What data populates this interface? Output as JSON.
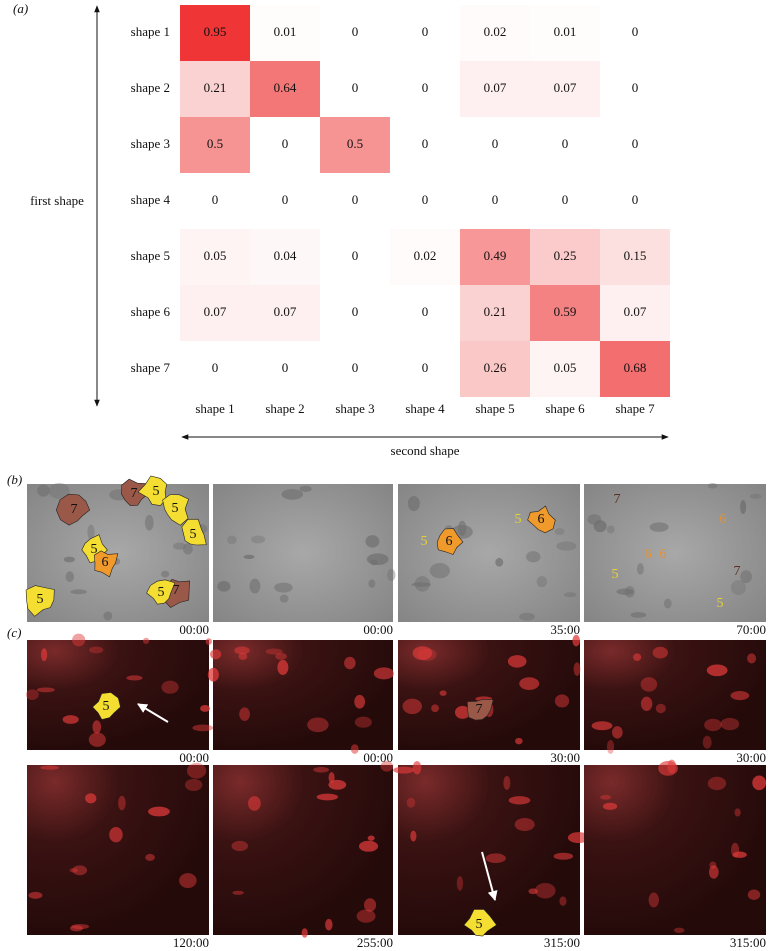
{
  "chart_data": {
    "type": "heatmap",
    "label": "(a)",
    "y_label": "first shape",
    "x_label": "second shape",
    "x_categories": [
      "shape 1",
      "shape 2",
      "shape 3",
      "shape 4",
      "shape 5",
      "shape 6",
      "shape 7"
    ],
    "y_categories": [
      "shape 1",
      "shape 2",
      "shape 3",
      "shape 4",
      "shape 5",
      "shape 6",
      "shape 7"
    ],
    "values": [
      [
        0.95,
        0.01,
        0,
        0,
        0.02,
        0.01,
        0
      ],
      [
        0.21,
        0.64,
        0,
        0,
        0.07,
        0.07,
        0
      ],
      [
        0.5,
        0,
        0.5,
        0,
        0,
        0,
        0
      ],
      [
        0,
        0,
        0,
        0,
        0,
        0,
        0
      ],
      [
        0.05,
        0.04,
        0,
        0.02,
        0.49,
        0.25,
        0.15
      ],
      [
        0.07,
        0.07,
        0,
        0,
        0.21,
        0.59,
        0.07
      ],
      [
        0,
        0,
        0,
        0,
        0.26,
        0.05,
        0.68
      ]
    ],
    "zlim": [
      0,
      1
    ],
    "color": "#ee2a2a"
  },
  "panel_b": {
    "label": "(b)",
    "images": [
      {
        "time": "00:00",
        "annotations": [
          "7",
          "7",
          "5",
          "5",
          "5",
          "5",
          "6",
          "7",
          "5",
          "5"
        ]
      },
      {
        "time": "00:00",
        "annotations": []
      },
      {
        "time": "35:00",
        "annotations": [
          "5",
          "6",
          "5",
          "6"
        ]
      },
      {
        "time": "70:00",
        "annotations": [
          "7",
          "6",
          "6",
          "6",
          "5",
          "7",
          "5"
        ]
      }
    ]
  },
  "panel_c": {
    "label": "(c)",
    "images": [
      {
        "time": "00:00",
        "annotations": [
          "5"
        ]
      },
      {
        "time": "00:00",
        "annotations": []
      },
      {
        "time": "30:00",
        "annotations": [
          "7"
        ]
      },
      {
        "time": "30:00",
        "annotations": []
      },
      {
        "time": "120:00",
        "annotations": []
      },
      {
        "time": "255:00",
        "annotations": []
      },
      {
        "time": "315:00",
        "annotations": [
          "5"
        ]
      },
      {
        "time": "315:00",
        "annotations": []
      }
    ]
  }
}
